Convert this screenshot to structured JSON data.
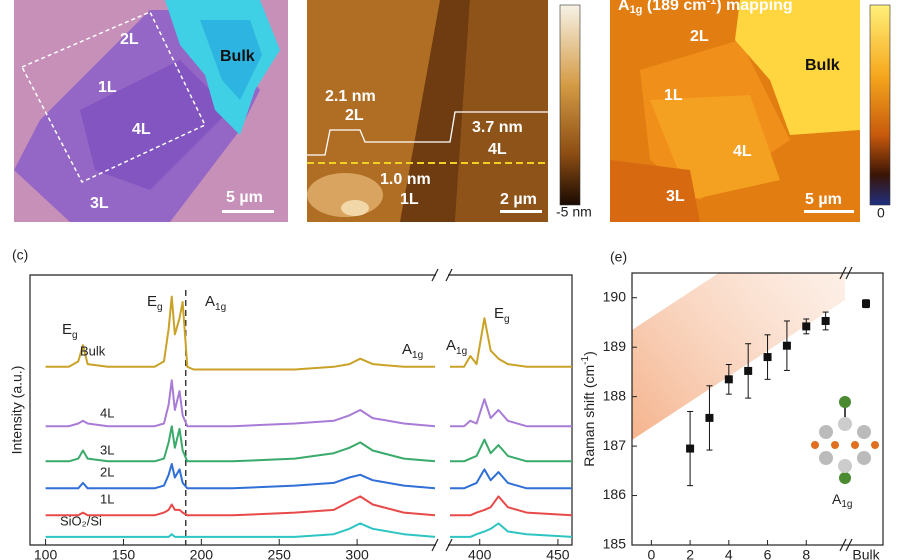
{
  "images": [
    {
      "labels": [
        "2L",
        "1L",
        "4L",
        "3L",
        "Bulk"
      ],
      "scale_bar": "5 µm"
    },
    {
      "labels": [
        "2.1 nm",
        "2L",
        "3.7 nm",
        "4L",
        "1.0 nm",
        "1L"
      ],
      "scale_bar": "2 µm",
      "colorbar_label": "-5 nm"
    },
    {
      "title": [
        "A",
        "1g",
        " (189 cm",
        "-1",
        ") mapping"
      ],
      "labels": [
        "2L",
        "1L",
        "Bulk",
        "4L",
        "3L"
      ],
      "scale_bar": "5 µm",
      "colorbar_label": "0"
    }
  ],
  "chart_data": [
    {
      "type": "line",
      "panel": "(c)",
      "y_label": "Intensity (a.u.)",
      "x": [
        100,
        115,
        121,
        124,
        127,
        140,
        170,
        176,
        179,
        181,
        183,
        186,
        188,
        191,
        195,
        220,
        260,
        285,
        295,
        302,
        310,
        330,
        350,
        381,
        390,
        394,
        398,
        403,
        407,
        412,
        418,
        430,
        459
      ],
      "xlim": [
        90,
        459
      ],
      "xbreak": [
        350,
        381
      ],
      "xticks": [
        100,
        150,
        200,
        250,
        300,
        400,
        450
      ],
      "ylim": [
        0,
        100
      ],
      "marker_line": 190,
      "series": [
        {
          "name": "Bulk",
          "color": "#c9a227",
          "values": [
            66,
            66,
            68,
            74,
            67,
            66,
            66,
            68,
            80,
            92,
            78,
            84,
            90,
            66,
            65,
            65,
            65,
            66,
            67,
            69,
            67,
            66,
            66,
            66,
            66,
            70,
            67,
            84,
            72,
            69,
            67,
            66,
            66
          ]
        },
        {
          "name": "4L",
          "color": "#a87bd6",
          "values": [
            44,
            44,
            45,
            46,
            45,
            44,
            44,
            45,
            52,
            61,
            50,
            57,
            48,
            44,
            44,
            44,
            45,
            46,
            48,
            50,
            47,
            45,
            44,
            44,
            44,
            46,
            45,
            54,
            47,
            50,
            46,
            44,
            44
          ]
        },
        {
          "name": "3L",
          "color": "#3aaa6a",
          "values": [
            31,
            31,
            32,
            35,
            32,
            31,
            31,
            32,
            38,
            44,
            36,
            43,
            35,
            31,
            31,
            31,
            32,
            34,
            36,
            38,
            35,
            32,
            31,
            31,
            31,
            32,
            33,
            39,
            34,
            37,
            33,
            31,
            31
          ]
        },
        {
          "name": "2L",
          "color": "#2f6fd6",
          "values": [
            21,
            21,
            21,
            23,
            21,
            21,
            21,
            22,
            26,
            30,
            25,
            28,
            23,
            21,
            21,
            21,
            22,
            23,
            25,
            26,
            24,
            22,
            21,
            21,
            21,
            22,
            23,
            28,
            24,
            27,
            23,
            21,
            21
          ]
        },
        {
          "name": "1L",
          "color": "#e84a4a",
          "values": [
            11,
            11,
            11,
            12,
            11,
            11,
            11,
            12,
            13,
            15,
            13,
            13,
            12,
            11,
            11,
            11,
            12,
            13,
            16,
            18,
            15,
            12,
            11,
            11,
            11,
            11,
            12,
            13,
            14,
            18,
            14,
            12,
            11
          ]
        },
        {
          "name": "SiO₂/Si",
          "color": "#2ec4c4",
          "values": [
            3,
            3,
            3,
            3,
            3,
            3,
            3,
            3,
            3,
            4,
            3,
            3,
            3,
            3,
            3,
            3,
            3,
            4,
            6,
            8,
            6,
            4,
            3,
            3,
            3,
            3,
            4,
            5,
            6,
            8,
            5,
            4,
            3
          ]
        }
      ],
      "annotations": [
        {
          "text": "E",
          "sub": "g"
        },
        {
          "text": "E",
          "sub": "g"
        },
        {
          "text": "A",
          "sub": "1g"
        },
        {
          "text": "A",
          "sub": "1g"
        },
        {
          "text": "A",
          "sub": "1g"
        },
        {
          "text": "E",
          "sub": "g"
        }
      ]
    },
    {
      "type": "scatter",
      "panel": "(e)",
      "y_label": [
        "Raman shift (cm",
        "-1",
        ")"
      ],
      "xlim": [
        -1,
        10
      ],
      "ylim": [
        185,
        190.5
      ],
      "xticks": [
        0,
        2,
        4,
        6,
        8
      ],
      "yticks": [
        185,
        186,
        187,
        188,
        189,
        190
      ],
      "series": [
        {
          "color": "#111",
          "x": [
            2,
            3,
            4,
            5,
            6,
            7,
            8,
            9
          ],
          "values": [
            186.95,
            187.57,
            188.35,
            188.52,
            188.8,
            189.03,
            189.42,
            189.53
          ],
          "errors": [
            0.75,
            0.65,
            0.3,
            0.55,
            0.45,
            0.5,
            0.15,
            0.18
          ]
        }
      ],
      "bulk": {
        "label": "Bulk",
        "value": 189.88,
        "error": 0.08
      },
      "inset_label": {
        "text": "A",
        "sub": "1g"
      }
    }
  ]
}
